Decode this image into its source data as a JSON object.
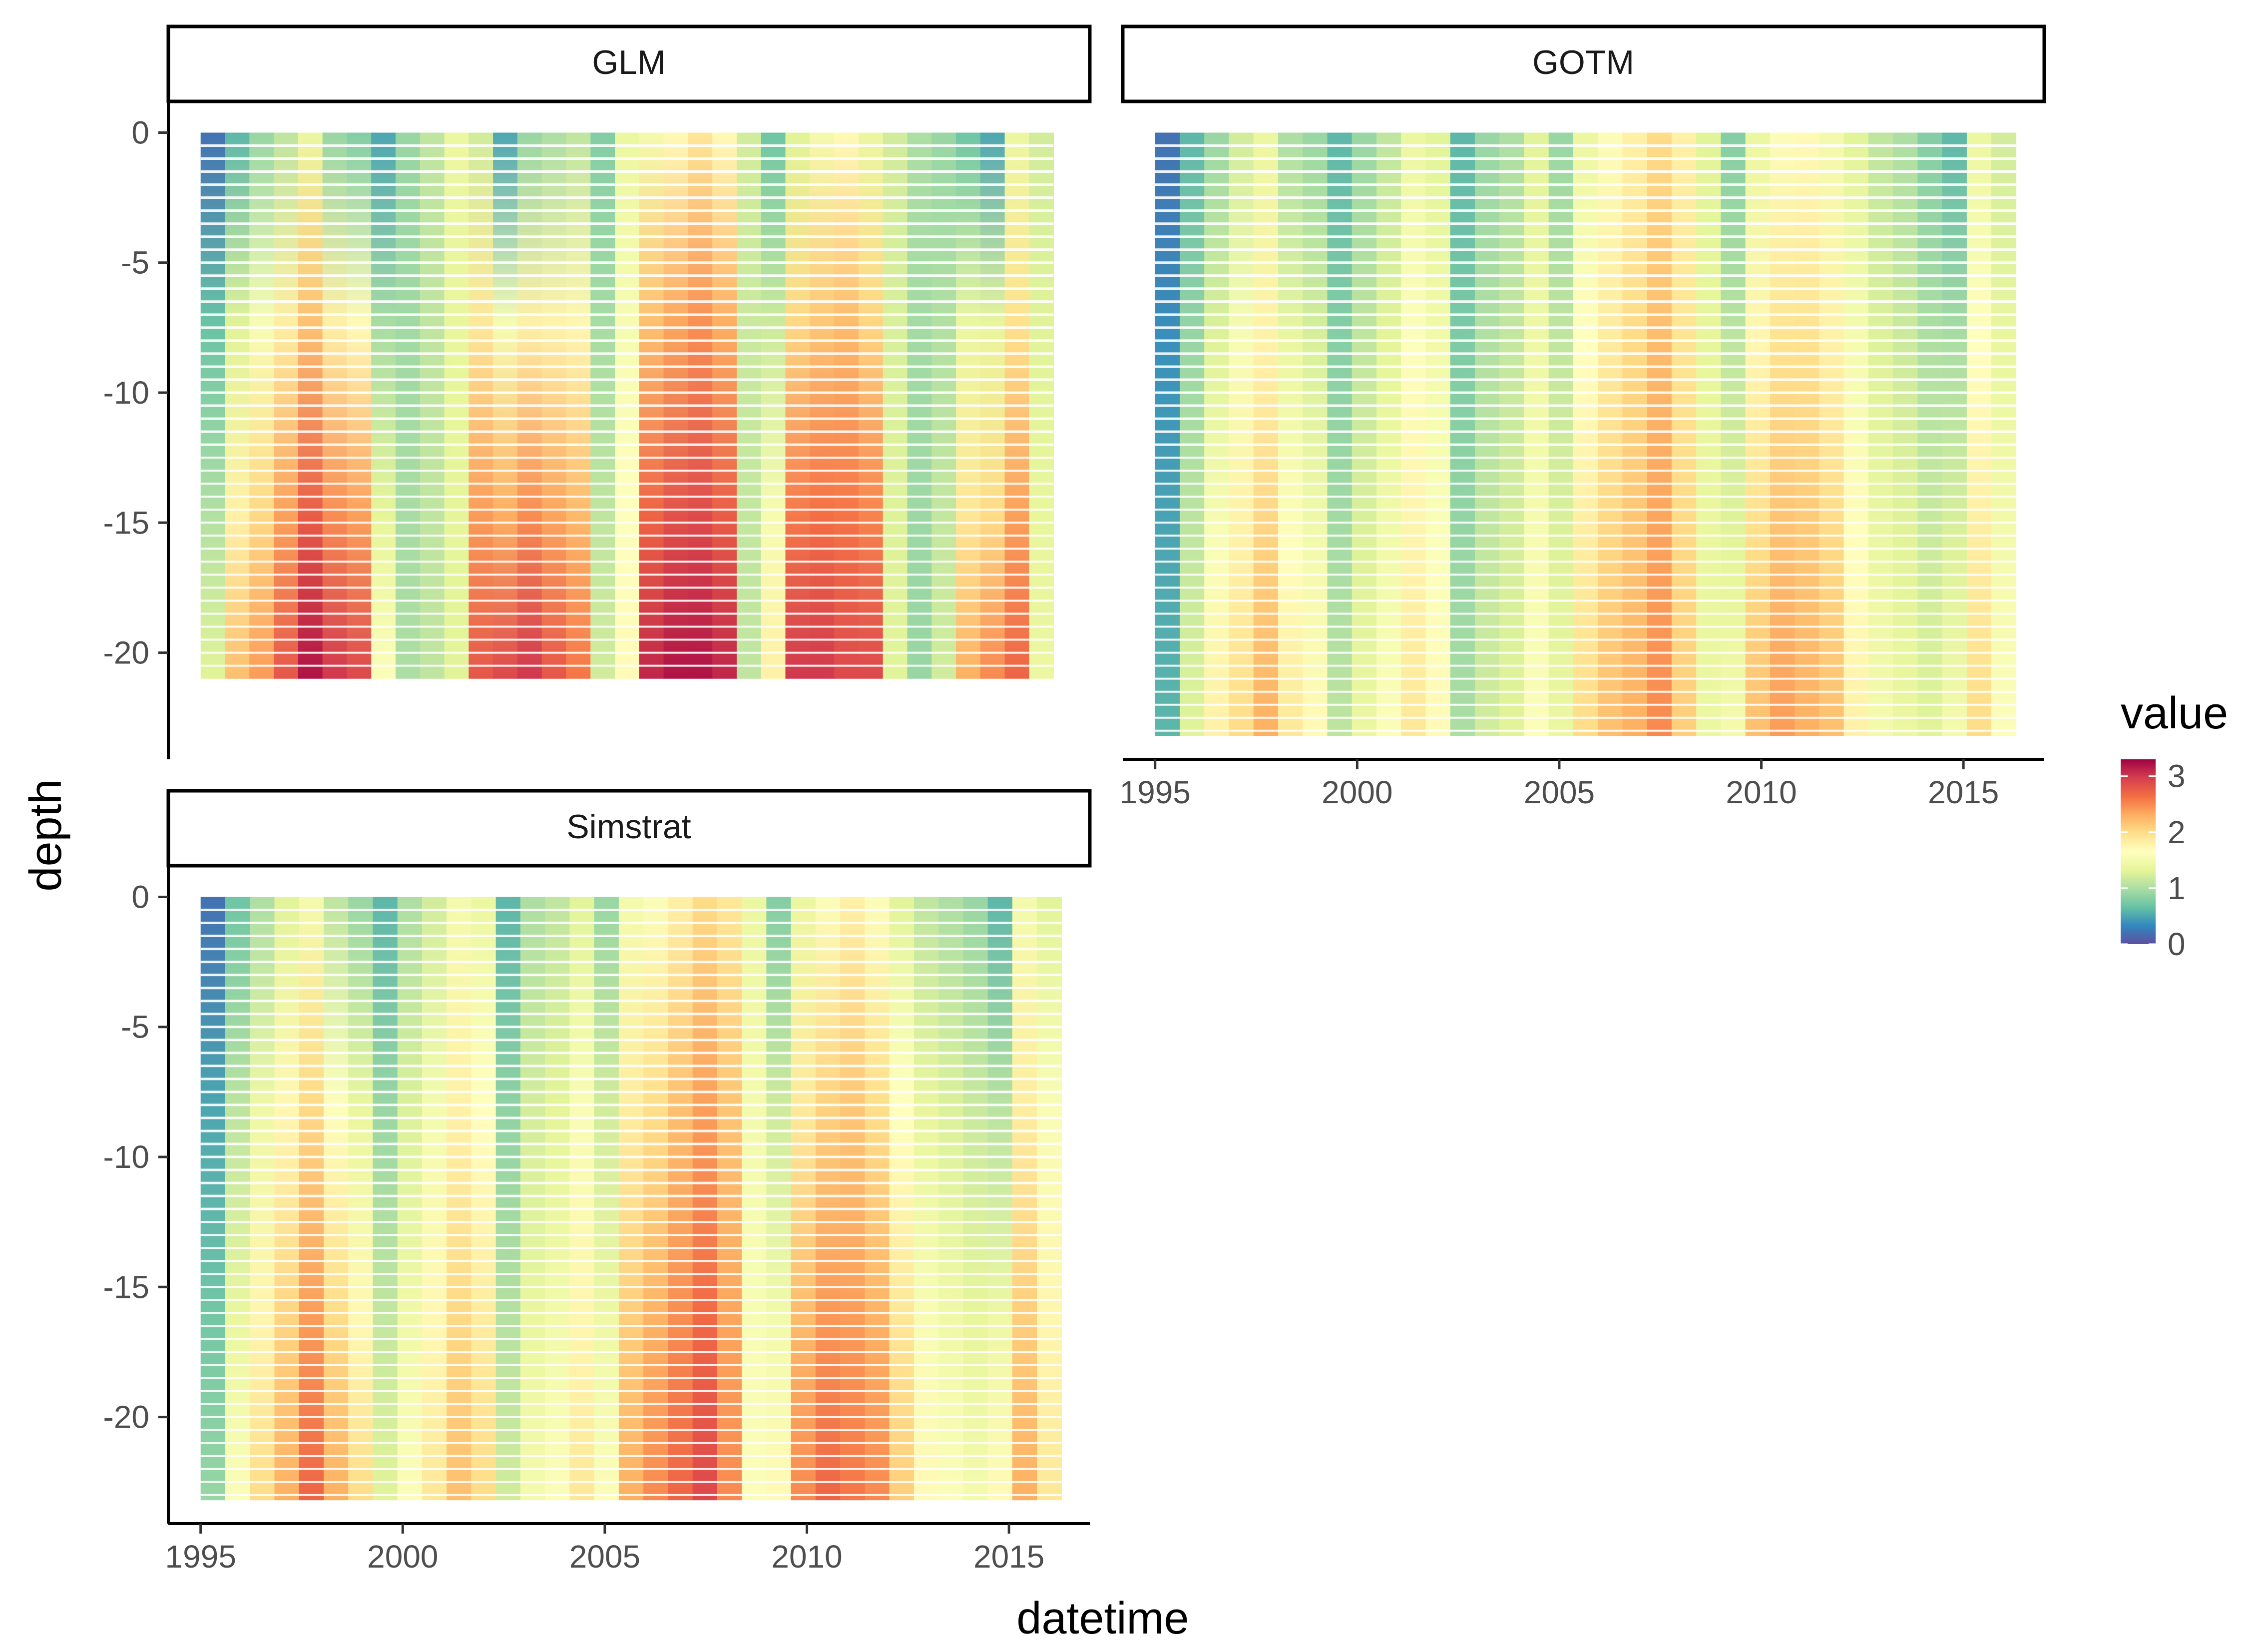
{
  "chart_data": {
    "type": "heatmap",
    "layout": "facet_wrap",
    "x_label": "datetime",
    "y_label": "depth",
    "x_ticks": [
      1995,
      2000,
      2005,
      2010,
      2015
    ],
    "x_range": [
      1994.2,
      2017.0
    ],
    "y_ticks": [
      0,
      -5,
      -10,
      -15,
      -20
    ],
    "y_range": [
      -24.1,
      1.2
    ],
    "legend": {
      "title": "value",
      "position": "right",
      "ticks": [
        3,
        2,
        1,
        0
      ],
      "range": [
        0,
        3.3
      ],
      "palette": "Spectral",
      "colors": [
        "#5E4FA2",
        "#3288BD",
        "#66C2A5",
        "#ABDDA4",
        "#E6F598",
        "#FFFFBF",
        "#FEE08B",
        "#FDAE61",
        "#F46D43",
        "#D53E4F",
        "#9E0142"
      ]
    },
    "panels": [
      {
        "strip": "GLM",
        "x_start": 1995.0,
        "x_end": 2016.1,
        "surface_depth": 0,
        "bottom_depth": -21.0,
        "surface_values": [
          0.2,
          0.6,
          0.9,
          1.1,
          1.4,
          0.9,
          0.8,
          0.5,
          0.9,
          1.1,
          1.4,
          1.2,
          0.5,
          0.9,
          1.0,
          1.1,
          0.8,
          1.4,
          1.5,
          1.7,
          1.9,
          1.7,
          1.2,
          0.7,
          1.3,
          1.5,
          1.7,
          1.4,
          1.2,
          1.0,
          0.9,
          0.7,
          0.5,
          1.4,
          1.2
        ],
        "bottom_values": [
          1.3,
          2.2,
          2.4,
          2.8,
          3.2,
          3.0,
          2.9,
          1.6,
          1.0,
          1.1,
          1.3,
          2.8,
          2.9,
          3.0,
          2.8,
          2.6,
          1.2,
          1.7,
          3.1,
          3.2,
          3.2,
          3.1,
          1.1,
          1.8,
          3.0,
          3.0,
          2.9,
          2.9,
          1.3,
          0.9,
          1.2,
          2.3,
          2.5,
          2.7,
          1.4
        ]
      },
      {
        "strip": "GOTM",
        "x_start": 1995.0,
        "x_end": 2016.3,
        "surface_depth": 0,
        "bottom_depth": -23.2,
        "surface_values": [
          0.2,
          0.6,
          0.9,
          1.2,
          1.4,
          1.0,
          0.9,
          0.6,
          0.9,
          1.1,
          1.4,
          1.3,
          0.6,
          0.9,
          1.0,
          1.3,
          0.9,
          1.4,
          1.6,
          1.8,
          2.0,
          1.8,
          1.3,
          0.8,
          1.4,
          1.6,
          1.7,
          1.5,
          1.3,
          1.1,
          1.0,
          0.8,
          0.6,
          1.4,
          1.2
        ],
        "bottom_values": [
          0.6,
          1.3,
          1.8,
          2.0,
          2.3,
          1.9,
          1.7,
          1.1,
          1.4,
          1.6,
          1.9,
          1.7,
          1.0,
          1.2,
          1.3,
          1.6,
          1.4,
          2.0,
          2.2,
          2.3,
          2.5,
          2.1,
          1.4,
          1.5,
          2.2,
          2.4,
          2.3,
          2.2,
          1.8,
          1.5,
          1.4,
          1.3,
          1.5,
          2.0,
          1.6
        ]
      },
      {
        "strip": "Simstrat",
        "x_start": 1995.0,
        "x_end": 2016.3,
        "surface_depth": 0,
        "bottom_depth": -23.2,
        "surface_values": [
          0.2,
          0.7,
          1.0,
          1.3,
          1.5,
          1.1,
          0.9,
          0.6,
          1.0,
          1.2,
          1.5,
          1.4,
          0.6,
          1.0,
          1.1,
          1.3,
          0.9,
          1.5,
          1.6,
          1.8,
          2.0,
          1.9,
          1.4,
          0.8,
          1.4,
          1.6,
          1.8,
          1.6,
          1.3,
          1.1,
          1.0,
          0.9,
          0.6,
          1.5,
          1.3
        ],
        "bottom_values": [
          0.9,
          1.6,
          2.0,
          2.3,
          2.7,
          2.3,
          2.0,
          1.3,
          1.6,
          1.9,
          2.2,
          2.0,
          1.2,
          1.5,
          1.6,
          1.9,
          1.6,
          2.3,
          2.5,
          2.7,
          2.9,
          2.5,
          1.6,
          1.7,
          2.5,
          2.7,
          2.6,
          2.5,
          2.1,
          1.7,
          1.6,
          1.5,
          1.7,
          2.3,
          1.9
        ]
      }
    ]
  }
}
